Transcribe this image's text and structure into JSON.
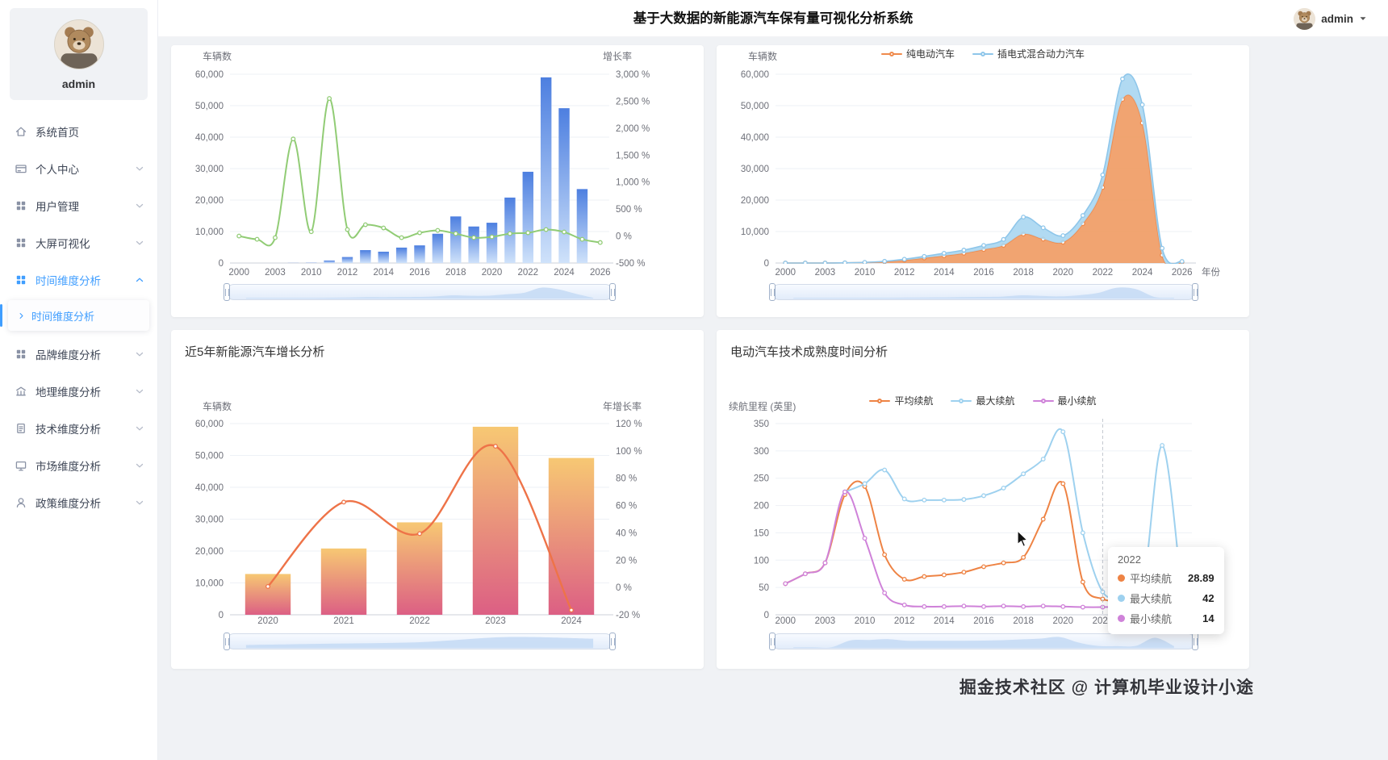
{
  "header": {
    "title": "基于大数据的新能源汽车保有量可视化分析系统",
    "user": "admin"
  },
  "sidebar": {
    "user": "admin",
    "items": [
      {
        "label": "系统首页",
        "icon": "home"
      },
      {
        "label": "个人中心",
        "icon": "card",
        "chevron": "down"
      },
      {
        "label": "用户管理",
        "icon": "grid",
        "chevron": "down"
      },
      {
        "label": "大屏可视化",
        "icon": "grid",
        "chevron": "down"
      },
      {
        "label": "时间维度分析",
        "icon": "grid",
        "chevron": "up",
        "active": true
      },
      {
        "label": "时间维度分析",
        "submenu": true,
        "active": true
      },
      {
        "label": "品牌维度分析",
        "icon": "grid",
        "chevron": "down"
      },
      {
        "label": "地理维度分析",
        "icon": "bank",
        "chevron": "down"
      },
      {
        "label": "技术维度分析",
        "icon": "doc",
        "chevron": "down"
      },
      {
        "label": "市场维度分析",
        "icon": "monitor",
        "chevron": "down"
      },
      {
        "label": "政策维度分析",
        "icon": "user",
        "chevron": "down"
      }
    ]
  },
  "watermark": "掘金技术社区 @ 计算机毕业设计小途",
  "chart_data": [
    {
      "type": "bar",
      "title": "",
      "categories": [
        "2000",
        "2001",
        "2003",
        "2008",
        "2010",
        "2011",
        "2012",
        "2013",
        "2014",
        "2015",
        "2016",
        "2017",
        "2018",
        "2019",
        "2020",
        "2021",
        "2022",
        "2023",
        "2024",
        "2025",
        "2026"
      ],
      "x_tick_labels": [
        {
          "i": 0,
          "t": "2000"
        },
        {
          "i": 2,
          "t": "2003"
        },
        {
          "i": 4,
          "t": "2010"
        },
        {
          "i": 6,
          "t": "2012"
        },
        {
          "i": 8,
          "t": "2014"
        },
        {
          "i": 10,
          "t": "2016"
        },
        {
          "i": 12,
          "t": "2018"
        },
        {
          "i": 14,
          "t": "2020"
        },
        {
          "i": 16,
          "t": "2022"
        },
        {
          "i": 18,
          "t": "2024"
        },
        {
          "i": 20,
          "t": "2026"
        }
      ],
      "left_axis": {
        "name": "车辆数",
        "min": 0,
        "max": 60000,
        "ticks": [
          "60,000",
          "50,000",
          "40,000",
          "30,000",
          "20,000",
          "10,000",
          "0"
        ]
      },
      "right_axis": {
        "name": "增长率",
        "min": -500,
        "max": 3000,
        "ticks": [
          "3,000 %",
          "2,500 %",
          "2,000 %",
          "1,500 %",
          "1,000 %",
          "500 %",
          "0 %",
          "-500 %"
        ]
      },
      "series": [
        {
          "name": "车辆数",
          "type": "bar",
          "axis": "left",
          "color_top": "#4d7fe0",
          "color_bottom": "#cfe2fa",
          "values": [
            0,
            0,
            0,
            30,
            80,
            800,
            1900,
            4100,
            3600,
            4900,
            5600,
            9300,
            14800,
            11600,
            12800,
            20800,
            29000,
            59000,
            49200,
            23500,
            0
          ]
        },
        {
          "name": "增长率",
          "type": "line",
          "axis": "right",
          "color": "#91cc75",
          "width": 2,
          "values": [
            0,
            -60,
            -30,
            1800,
            80,
            2550,
            120,
            210,
            150,
            -30,
            60,
            105,
            45,
            -30,
            -15,
            45,
            60,
            120,
            75,
            -60,
            -120
          ]
        }
      ],
      "zoom_preview": 0
    },
    {
      "type": "area",
      "title": "",
      "categories": [
        "2000",
        "2001",
        "2003",
        "2008",
        "2010",
        "2011",
        "2012",
        "2013",
        "2014",
        "2015",
        "2016",
        "2017",
        "2018",
        "2019",
        "2020",
        "2021",
        "2022",
        "2023",
        "2024",
        "2025",
        "2026"
      ],
      "x_tick_labels": [
        {
          "i": 0,
          "t": "2000"
        },
        {
          "i": 2,
          "t": "2003"
        },
        {
          "i": 4,
          "t": "2010"
        },
        {
          "i": 6,
          "t": "2012"
        },
        {
          "i": 8,
          "t": "2014"
        },
        {
          "i": 10,
          "t": "2016"
        },
        {
          "i": 12,
          "t": "2018"
        },
        {
          "i": 14,
          "t": "2020"
        },
        {
          "i": 16,
          "t": "2022"
        },
        {
          "i": 18,
          "t": "2024"
        },
        {
          "i": 20,
          "t": "2026"
        }
      ],
      "x_axis_name": "年份",
      "left_axis": {
        "name": "车辆数",
        "min": 0,
        "max": 60000,
        "ticks": [
          "60,000",
          "50,000",
          "40,000",
          "30,000",
          "20,000",
          "10,000",
          "0"
        ]
      },
      "series": [
        {
          "name": "纯电动汽车",
          "type": "line",
          "axis": "left",
          "stack": true,
          "area": true,
          "in_legend": true,
          "color": "#ef8a4c",
          "fill": "#f09a62",
          "fill_opacity": 0.9,
          "width": 1.6,
          "values": [
            0,
            0,
            0,
            50,
            150,
            400,
            900,
            1600,
            2300,
            3100,
            4300,
            5600,
            9200,
            7600,
            6600,
            12500,
            24000,
            52000,
            44500,
            2500,
            300
          ]
        },
        {
          "name": "插电式混合动力汽车",
          "type": "line",
          "axis": "left",
          "stack": true,
          "area": true,
          "in_legend": true,
          "color": "#8ec6ea",
          "fill": "#a9d6f1",
          "fill_opacity": 0.9,
          "width": 1.6,
          "values": [
            0,
            0,
            0,
            20,
            60,
            150,
            300,
            500,
            800,
            1000,
            1300,
            1900,
            5400,
            3600,
            2100,
            2600,
            4000,
            6500,
            5800,
            2200,
            200
          ]
        }
      ],
      "zoom_preview": "sum"
    },
    {
      "type": "bar",
      "title": "近5年新能源汽车增长分析",
      "categories": [
        "2020",
        "2021",
        "2022",
        "2023",
        "2024"
      ],
      "x_tick_labels": [
        {
          "i": 0,
          "t": "2020"
        },
        {
          "i": 1,
          "t": "2021"
        },
        {
          "i": 2,
          "t": "2022"
        },
        {
          "i": 3,
          "t": "2023"
        },
        {
          "i": 4,
          "t": "2024"
        }
      ],
      "left_axis": {
        "name": "车辆数",
        "min": 0,
        "max": 60000,
        "ticks": [
          "60,000",
          "50,000",
          "40,000",
          "30,000",
          "20,000",
          "10,000",
          "0"
        ]
      },
      "right_axis": {
        "name": "年增长率",
        "min": -20,
        "max": 120,
        "ticks": [
          "120 %",
          "100 %",
          "80 %",
          "60 %",
          "40 %",
          "20 %",
          "0 %",
          "-20 %"
        ]
      },
      "series": [
        {
          "name": "车辆数",
          "type": "bar",
          "axis": "left",
          "color_top": "#f7c873",
          "color_bottom": "#dc5f84",
          "values": [
            12800,
            20800,
            29000,
            59000,
            49200
          ]
        },
        {
          "name": "年增长率",
          "type": "line",
          "axis": "right",
          "color": "#ee7348",
          "width": 2.4,
          "values": [
            0.7,
            62.5,
            39.4,
            103.4,
            -16.6
          ]
        }
      ],
      "zoom_preview": 0
    },
    {
      "type": "line",
      "title": "电动汽车技术成熟度时间分析",
      "categories": [
        "2000",
        "2001",
        "2003",
        "2008",
        "2010",
        "2011",
        "2012",
        "2013",
        "2014",
        "2015",
        "2016",
        "2017",
        "2018",
        "2019",
        "2020",
        "2021",
        "2022",
        "2023",
        "2024",
        "2025",
        "2026"
      ],
      "x_tick_labels": [
        {
          "i": 0,
          "t": "2000"
        },
        {
          "i": 2,
          "t": "2003"
        },
        {
          "i": 4,
          "t": "2010"
        },
        {
          "i": 6,
          "t": "2012"
        },
        {
          "i": 8,
          "t": "2014"
        },
        {
          "i": 10,
          "t": "2016"
        },
        {
          "i": 12,
          "t": "2018"
        },
        {
          "i": 14,
          "t": "2020"
        },
        {
          "i": 16,
          "t": "2022"
        },
        {
          "i": 18,
          "t": "2024"
        },
        {
          "i": 20,
          "t": "2026"
        }
      ],
      "x_axis_name": "年份",
      "left_axis": {
        "name": "续航里程 (英里)",
        "min": 0,
        "max": 350,
        "ticks": [
          "350",
          "300",
          "250",
          "200",
          "150",
          "100",
          "50",
          "0"
        ]
      },
      "series": [
        {
          "name": "平均续航",
          "type": "line",
          "axis": "left",
          "in_legend": true,
          "color": "#ee8344",
          "width": 2,
          "values": [
            57,
            75,
            95,
            220,
            235,
            110,
            65,
            70,
            73,
            78,
            88,
            95,
            105,
            175,
            240,
            60,
            28.89,
            26,
            25,
            27,
            30
          ]
        },
        {
          "name": "最大续航",
          "type": "line",
          "axis": "left",
          "in_legend": true,
          "color": "#9ed1ef",
          "width": 2,
          "values": [
            null,
            null,
            null,
            225,
            240,
            265,
            212,
            210,
            210,
            211,
            218,
            232,
            258,
            285,
            335,
            150,
            42,
            35,
            45,
            310,
            38
          ]
        },
        {
          "name": "最小续航",
          "type": "line",
          "axis": "left",
          "in_legend": true,
          "color": "#cf82d9",
          "width": 2,
          "values": [
            57,
            75,
            95,
            225,
            140,
            40,
            18,
            15,
            15,
            16,
            15,
            16,
            15,
            16,
            15,
            14,
            14,
            15,
            18,
            22,
            30
          ]
        }
      ],
      "tooltip": {
        "title": "2022",
        "x_index": 16,
        "rows": [
          {
            "name": "平均续航",
            "value": "28.89",
            "color": "#ee8344"
          },
          {
            "name": "最大续航",
            "value": "42",
            "color": "#9ed1ef"
          },
          {
            "name": "最小续航",
            "value": "14",
            "color": "#cf82d9"
          }
        ]
      },
      "zoom_preview": 1
    }
  ]
}
